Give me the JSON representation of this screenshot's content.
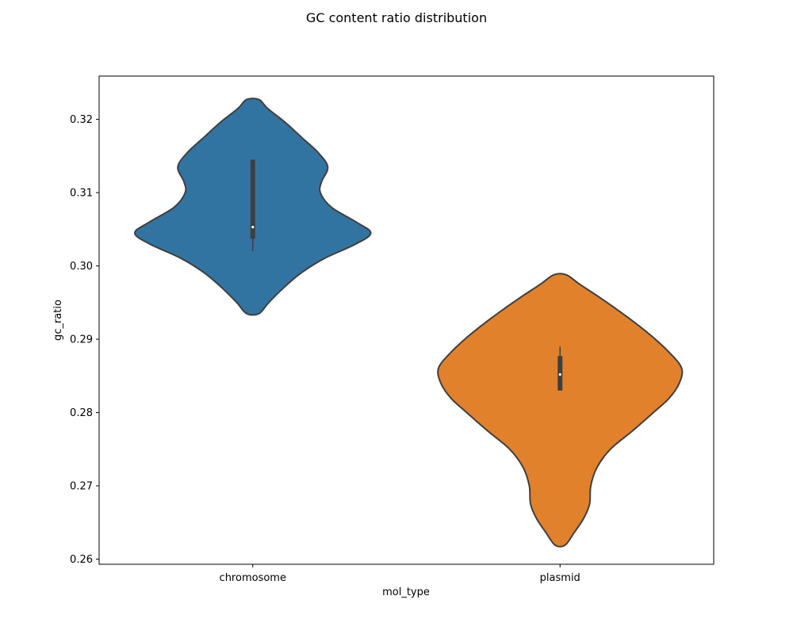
{
  "chart_data": {
    "type": "violin",
    "title": "GC content ratio distribution",
    "xlabel": "mol_type",
    "ylabel": "gc_ratio",
    "categories": [
      "chromosome",
      "plasmid"
    ],
    "ylim": [
      0.2593,
      0.3259
    ],
    "yticks": [
      0.26,
      0.27,
      0.28,
      0.29,
      0.3,
      0.31,
      0.32
    ],
    "ytick_labels": [
      "0.26",
      "0.27",
      "0.28",
      "0.29",
      "0.30",
      "0.31",
      "0.32"
    ],
    "grid": false,
    "colors": {
      "chromosome": "#3274a1",
      "plasmid": "#e1812c",
      "outline": "#3f3f3f",
      "box": "#3f3f3f",
      "median": "#ffffff"
    },
    "series": [
      {
        "category": "chromosome",
        "min": 0.302,
        "q1": 0.3037,
        "median": 0.3053,
        "q3": 0.3145,
        "max": 0.3145,
        "range": [
          0.2935,
          0.3227
        ],
        "density": [
          [
            0.2935,
            0.05
          ],
          [
            0.295,
            0.13
          ],
          [
            0.297,
            0.25
          ],
          [
            0.299,
            0.39
          ],
          [
            0.301,
            0.58
          ],
          [
            0.303,
            0.84
          ],
          [
            0.3045,
            0.96
          ],
          [
            0.306,
            0.84
          ],
          [
            0.308,
            0.64
          ],
          [
            0.31,
            0.55
          ],
          [
            0.3115,
            0.56
          ],
          [
            0.3135,
            0.61
          ],
          [
            0.3155,
            0.53
          ],
          [
            0.3175,
            0.4
          ],
          [
            0.3195,
            0.27
          ],
          [
            0.3215,
            0.12
          ],
          [
            0.3227,
            0.05
          ]
        ]
      },
      {
        "category": "plasmid",
        "min": 0.283,
        "q1": 0.283,
        "median": 0.2852,
        "q3": 0.2877,
        "max": 0.289,
        "range": [
          0.2619,
          0.2988
        ],
        "density": [
          [
            0.2619,
            0.04
          ],
          [
            0.2635,
            0.11
          ],
          [
            0.2655,
            0.19
          ],
          [
            0.2675,
            0.24
          ],
          [
            0.27,
            0.25
          ],
          [
            0.2725,
            0.3
          ],
          [
            0.275,
            0.41
          ],
          [
            0.2775,
            0.59
          ],
          [
            0.28,
            0.76
          ],
          [
            0.282,
            0.89
          ],
          [
            0.284,
            0.97
          ],
          [
            0.286,
            0.99
          ],
          [
            0.288,
            0.9
          ],
          [
            0.2905,
            0.74
          ],
          [
            0.293,
            0.55
          ],
          [
            0.2955,
            0.34
          ],
          [
            0.2975,
            0.16
          ],
          [
            0.2988,
            0.05
          ]
        ]
      }
    ]
  }
}
